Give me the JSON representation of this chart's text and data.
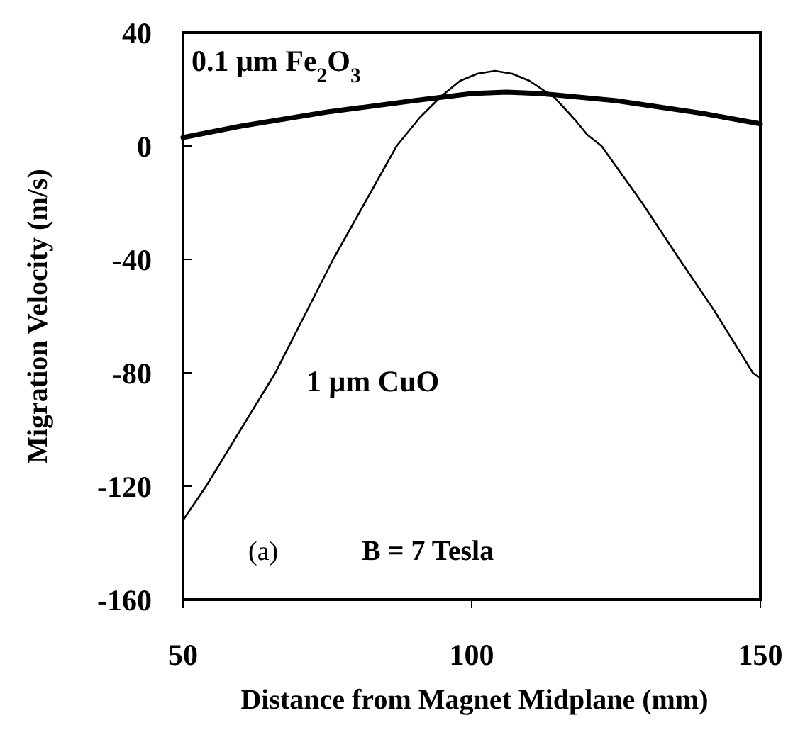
{
  "chart_data": {
    "type": "line",
    "xlabel": "Distance from Magnet Midplane (mm)",
    "ylabel": "Migration Velocity (m/s)",
    "xlim": [
      50,
      150
    ],
    "ylim": [
      -160,
      40
    ],
    "xticks": [
      50,
      100,
      150
    ],
    "yticks": [
      40,
      0,
      -40,
      -80,
      -120,
      -160
    ],
    "series": [
      {
        "name": "0.1 μm Fe$_{2}$O$_{3}$",
        "color": "#000000",
        "x": [
          50,
          60,
          75,
          90,
          100,
          106,
          112,
          125,
          140,
          150
        ],
        "values": [
          3,
          7,
          12,
          16,
          18.5,
          19,
          18.5,
          16,
          11.5,
          7.8
        ]
      },
      {
        "name": "1 μm CuO",
        "color": "#000000",
        "x": [
          50,
          54,
          60,
          66,
          71,
          76,
          81.5,
          87,
          91,
          94.7,
          98,
          101,
          104,
          107,
          110,
          114.4,
          118,
          120,
          122.5,
          129.5,
          136,
          142,
          148.7,
          150
        ],
        "values": [
          -132,
          -120,
          -100,
          -80,
          -60,
          -40,
          -20,
          0,
          10,
          17.5,
          23,
          25.5,
          26.5,
          25.5,
          23,
          17,
          9,
          4,
          0,
          -20,
          -40,
          -58,
          -80,
          -82
        ]
      }
    ],
    "annotations": [
      "(a)",
      "B = 7 Tesla"
    ],
    "marker": "none",
    "line_style": "solid",
    "grid": false
  }
}
